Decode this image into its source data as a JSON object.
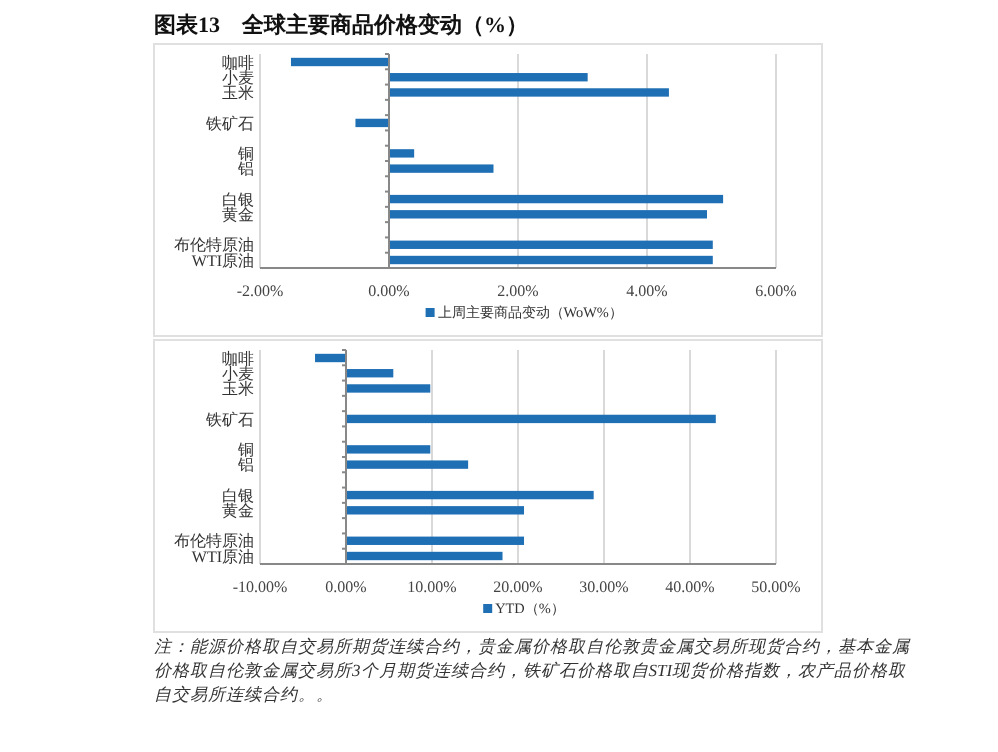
{
  "chart_data": [
    {
      "type": "bar",
      "orientation": "horizontal",
      "title": "图表13　全球主要商品价格变动（%）",
      "categories": [
        "咖啡",
        "小麦",
        "玉米",
        null,
        "铁矿石",
        null,
        "铜",
        "铝",
        null,
        "白银",
        "黄金",
        null,
        "布伦特原油",
        "WTI原油"
      ],
      "series": [
        {
          "name": "上周主要商品变动（WoW%）",
          "color": "#1f6fb5",
          "values": [
            -1.52,
            3.08,
            4.34,
            null,
            -0.52,
            null,
            0.39,
            1.62,
            null,
            5.18,
            4.93,
            null,
            5.02,
            5.02
          ]
        }
      ],
      "xlim": [
        -2,
        6
      ],
      "xticks": [
        {
          "value": -2,
          "label": "-2.00%"
        },
        {
          "value": 0,
          "label": "0.00%"
        },
        {
          "value": 2,
          "label": "2.00%"
        },
        {
          "value": 4,
          "label": "4.00%"
        },
        {
          "value": 6,
          "label": "6.00%"
        }
      ],
      "grid": "x",
      "legend": "bottom"
    },
    {
      "type": "bar",
      "orientation": "horizontal",
      "categories": [
        "咖啡",
        "小麦",
        "玉米",
        null,
        "铁矿石",
        null,
        "铜",
        "铝",
        null,
        "白银",
        "黄金",
        null,
        "布伦特原油",
        "WTI原油"
      ],
      "series": [
        {
          "name": "YTD（%）",
          "color": "#1f6fb5",
          "values": [
            -3.6,
            5.5,
            9.8,
            null,
            43.0,
            null,
            9.8,
            14.2,
            null,
            28.8,
            20.7,
            null,
            20.7,
            18.2
          ]
        }
      ],
      "xlim": [
        -10,
        50
      ],
      "xticks": [
        {
          "value": -10,
          "label": "-10.00%"
        },
        {
          "value": 0,
          "label": "0.00%"
        },
        {
          "value": 10,
          "label": "10.00%"
        },
        {
          "value": 20,
          "label": "20.00%"
        },
        {
          "value": 30,
          "label": "30.00%"
        },
        {
          "value": 40,
          "label": "40.00%"
        },
        {
          "value": 50,
          "label": "50.00%"
        }
      ],
      "grid": "x",
      "legend": "bottom",
      "annotations": [
        "注：能源价格取自交易所期货连续合约，贵金属价格取自伦敦贵金属交易所现货合约，基本金属价格取自伦敦金属交易所3个月期货连续合约，铁矿石价格取自STI现货价格指数，农产品价格取自交易所连续合约。。"
      ]
    }
  ]
}
